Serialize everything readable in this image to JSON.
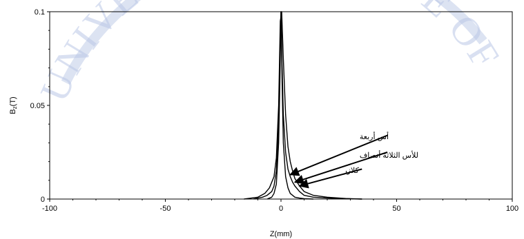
{
  "watermark": {
    "text": "UNIVERSITY COLLEGE OF SCIENCE",
    "color": "#b9c7e6"
  },
  "chart_data": {
    "type": "line",
    "title": "",
    "xlabel": "Z(mm)",
    "ylabel_main": "B",
    "ylabel_sub": "z",
    "ylabel_unit": "(T)",
    "xlim": [
      -100,
      100
    ],
    "ylim": [
      0,
      0.1
    ],
    "x_ticks": [
      -100,
      -50,
      0,
      50,
      100
    ],
    "x_tick_labels": [
      "-100",
      "-50",
      "0",
      "50",
      "100"
    ],
    "y_ticks": [
      0,
      0.05,
      0.1
    ],
    "y_tick_labels": [
      "0",
      "0.05",
      "0.1"
    ],
    "grid": false,
    "series": [
      {
        "color": "#000000",
        "x": [
          -12,
          -8,
          -6,
          -4,
          -3,
          -2,
          -1,
          -0.5,
          0,
          0.5,
          1,
          2,
          3,
          4,
          5,
          6,
          8,
          10,
          14,
          20,
          28,
          35
        ],
        "y": [
          0,
          0.001,
          0.002,
          0.004,
          0.007,
          0.015,
          0.04,
          0.07,
          0.1,
          0.07,
          0.045,
          0.025,
          0.016,
          0.012,
          0.009,
          0.007,
          0.004,
          0.002,
          0.001,
          0.0005,
          0.0002,
          0
        ]
      },
      {
        "color": "#000000",
        "x": [
          -16,
          -10,
          -7,
          -5,
          -3,
          -2,
          -1,
          -0.3,
          0.3,
          1,
          2,
          3,
          4,
          5,
          6,
          8,
          10,
          14,
          20,
          28,
          35
        ],
        "y": [
          0,
          0.001,
          0.003,
          0.006,
          0.012,
          0.022,
          0.05,
          0.095,
          0.1,
          0.075,
          0.045,
          0.028,
          0.02,
          0.015,
          0.011,
          0.007,
          0.004,
          0.002,
          0.001,
          0.0003,
          0
        ]
      },
      {
        "color": "#000000",
        "x": [
          -6,
          -4,
          -3,
          -2,
          -1,
          -0.5,
          0,
          0.5,
          1,
          2,
          3,
          4,
          5,
          6,
          8,
          10,
          14
        ],
        "y": [
          0,
          0.001,
          0.003,
          0.008,
          0.03,
          0.06,
          0.1,
          0.06,
          0.03,
          0.012,
          0.006,
          0.003,
          0.002,
          0.001,
          0.0005,
          0.0002,
          0
        ]
      }
    ],
    "annotations": [
      {
        "text": "أس أربعة",
        "text_x": 34,
        "text_y": 0.032,
        "line_from": [
          46,
          0.034
        ],
        "arrow_to": [
          4,
          0.013
        ]
      },
      {
        "text": "للأس الثلاثة أنصاف",
        "text_x": 34,
        "text_y": 0.022,
        "line_from": [
          46,
          0.025
        ],
        "arrow_to": [
          6,
          0.009
        ]
      },
      {
        "text": "كلازر",
        "text_x": 27,
        "text_y": 0.014,
        "line_from": [
          35,
          0.016
        ],
        "arrow_to": [
          8,
          0.007
        ]
      }
    ]
  }
}
